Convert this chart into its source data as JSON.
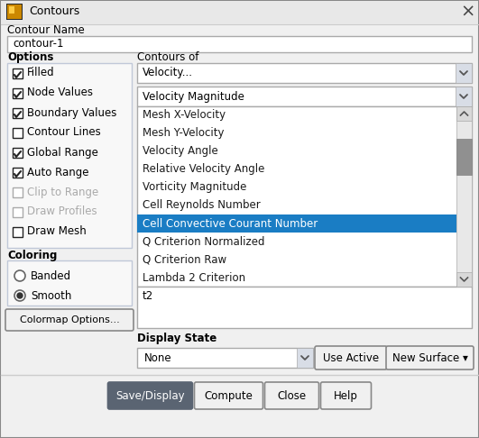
{
  "title": "Contours",
  "bg_color": "#f0f0f0",
  "dialog_bg": "#f5f5f5",
  "border_color": "#aaaaaa",
  "contour_name_label": "Contour Name",
  "contour_name_value": "contour-1",
  "options_label": "Options",
  "checkboxes": [
    {
      "label": "Filled",
      "checked": true,
      "enabled": true
    },
    {
      "label": "Node Values",
      "checked": true,
      "enabled": true
    },
    {
      "label": "Boundary Values",
      "checked": true,
      "enabled": true
    },
    {
      "label": "Contour Lines",
      "checked": false,
      "enabled": true
    },
    {
      "label": "Global Range",
      "checked": true,
      "enabled": true
    },
    {
      "label": "Auto Range",
      "checked": true,
      "enabled": true
    },
    {
      "label": "Clip to Range",
      "checked": false,
      "enabled": false
    },
    {
      "label": "Draw Profiles",
      "checked": false,
      "enabled": false
    },
    {
      "label": "Draw Mesh",
      "checked": false,
      "enabled": true
    }
  ],
  "contours_of_label": "Contours of",
  "velocity_dropdown": "Velocity...",
  "velocity_magnitude_dropdown": "Velocity Magnitude",
  "dropdown_list": [
    "Mesh X-Velocity",
    "Mesh Y-Velocity",
    "Velocity Angle",
    "Relative Velocity Angle",
    "Vorticity Magnitude",
    "Cell Reynolds Number",
    "Cell Convective Courant Number",
    "Q Criterion Normalized",
    "Q Criterion Raw",
    "Lambda 2 Criterion"
  ],
  "selected_item": "Cell Convective Courant Number",
  "selected_item_bg": "#1a7dc4",
  "selected_item_color": "#ffffff",
  "t2_label": "t2",
  "coloring_label": "Coloring",
  "coloring_options": [
    "Banded",
    "Smooth"
  ],
  "coloring_selected": "Smooth",
  "display_state_label": "Display State",
  "none_dropdown": "None",
  "buttons_right": [
    "Use Active",
    "New Surface ▾"
  ],
  "colormap_button": "Colormap Options...",
  "bottom_buttons": [
    "Save/Display",
    "Compute",
    "Close",
    "Help"
  ],
  "save_display_bg": "#5a6472",
  "save_display_color": "#ffffff",
  "input_bg": "#ffffff",
  "check_color": "#222222",
  "disabled_color": "#aaaaaa",
  "label_color": "#000000",
  "button_bg": "#f0f0f0",
  "button_border": "#888888",
  "scrollbar_bg": "#d0d0d0",
  "scrollbar_thumb": "#808080",
  "listbox_border": "#aaaaaa",
  "title_icon_outer": "#8b6914",
  "title_icon_inner": "#d4a017"
}
